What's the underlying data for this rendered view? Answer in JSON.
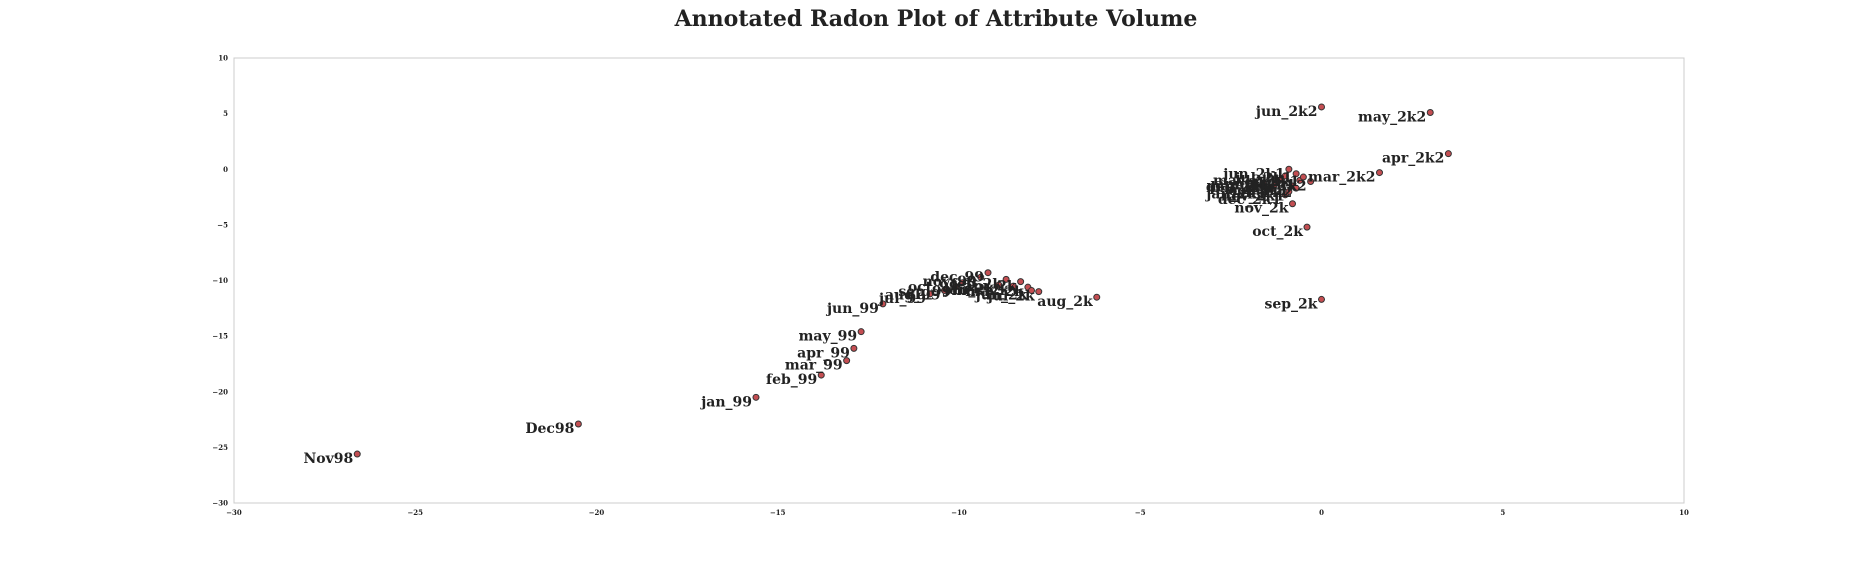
{
  "chart_data": {
    "type": "scatter",
    "title": "Annotated Radon Plot of Attribute Volume",
    "xlabel": "",
    "ylabel": "",
    "xlim": [
      -30,
      10
    ],
    "ylim": [
      -30,
      10
    ],
    "xticks": [
      -30,
      -25,
      -20,
      -15,
      -10,
      -5,
      0,
      5,
      10
    ],
    "yticks": [
      -30,
      -25,
      -20,
      -15,
      -10,
      -5,
      0,
      5,
      10
    ],
    "xtick_labels": [
      "−30",
      "−25",
      "−20",
      "−15",
      "−10",
      "−5",
      "0",
      "5",
      "10"
    ],
    "ytick_labels": [
      "−30",
      "−25",
      "−20",
      "−15",
      "−10",
      "−5",
      "0",
      "5",
      "10"
    ],
    "grid": false,
    "marker_color": "#c44e52",
    "points": [
      {
        "label": "Nov98",
        "x": -26.6,
        "y": -25.6
      },
      {
        "label": "Dec98",
        "x": -20.5,
        "y": -22.9
      },
      {
        "label": "jan_99",
        "x": -15.6,
        "y": -20.5
      },
      {
        "label": "feb_99",
        "x": -13.8,
        "y": -18.5
      },
      {
        "label": "mar_99",
        "x": -13.1,
        "y": -17.2
      },
      {
        "label": "apr_99",
        "x": -12.9,
        "y": -16.1
      },
      {
        "label": "may_99",
        "x": -12.7,
        "y": -14.6
      },
      {
        "label": "jun_99",
        "x": -12.1,
        "y": -12.1
      },
      {
        "label": "jul_99",
        "x": -10.8,
        "y": -11.2
      },
      {
        "label": "aug_99",
        "x": -10.4,
        "y": -10.9
      },
      {
        "label": "sep_99",
        "x": -10.1,
        "y": -10.6
      },
      {
        "label": "oct_99",
        "x": -9.9,
        "y": -10.2
      },
      {
        "label": "nov_99",
        "x": -9.4,
        "y": -9.7
      },
      {
        "label": "dec_99",
        "x": -9.2,
        "y": -9.3
      },
      {
        "label": "jan_2k",
        "x": -8.9,
        "y": -10.4
      },
      {
        "label": "feb_2k",
        "x": -8.7,
        "y": -9.9
      },
      {
        "label": "mar_2k",
        "x": -8.5,
        "y": -10.5
      },
      {
        "label": "apr_2k",
        "x": -8.3,
        "y": -10.1
      },
      {
        "label": "may_2k",
        "x": -8.1,
        "y": -10.6
      },
      {
        "label": "jun_2k",
        "x": -8.0,
        "y": -10.9
      },
      {
        "label": "jul_2k",
        "x": -7.8,
        "y": -11.0
      },
      {
        "label": "aug_2k",
        "x": -6.2,
        "y": -11.5
      },
      {
        "label": "sep_2k",
        "x": 0.0,
        "y": -11.7
      },
      {
        "label": "oct_2k",
        "x": -0.4,
        "y": -5.2
      },
      {
        "label": "nov_2k",
        "x": -0.8,
        "y": -3.1
      },
      {
        "label": "dec_2k",
        "x": -1.6,
        "y": -1.2
      },
      {
        "label": "jan_2k1",
        "x": -1.4,
        "y": -1.8
      },
      {
        "label": "feb_2k1",
        "x": -1.3,
        "y": -1.4
      },
      {
        "label": "mar_2k1",
        "x": -1.2,
        "y": -1.1
      },
      {
        "label": "apr_2k1",
        "x": -1.1,
        "y": -0.9
      },
      {
        "label": "may_2k1",
        "x": -1.0,
        "y": -0.6
      },
      {
        "label": "jun_2k1",
        "x": -0.9,
        "y": 0.0
      },
      {
        "label": "jul_2k1",
        "x": -0.7,
        "y": -0.4
      },
      {
        "label": "aug_2k1",
        "x": -0.6,
        "y": -1.0
      },
      {
        "label": "sep_2k1",
        "x": -0.5,
        "y": -0.7
      },
      {
        "label": "oct_2k1",
        "x": -0.8,
        "y": -1.5
      },
      {
        "label": "nov_2k1",
        "x": -0.9,
        "y": -2.0
      },
      {
        "label": "dec_2k1",
        "x": -1.0,
        "y": -2.3
      },
      {
        "label": "jan_2k2",
        "x": -0.7,
        "y": -1.7
      },
      {
        "label": "feb_2k2",
        "x": -0.3,
        "y": -1.1
      },
      {
        "label": "mar_2k2",
        "x": 1.6,
        "y": -0.3
      },
      {
        "label": "apr_2k2",
        "x": 3.5,
        "y": 1.4
      },
      {
        "label": "may_2k2",
        "x": 3.0,
        "y": 5.1
      },
      {
        "label": "jun_2k2",
        "x": 0.0,
        "y": 5.6
      }
    ]
  }
}
